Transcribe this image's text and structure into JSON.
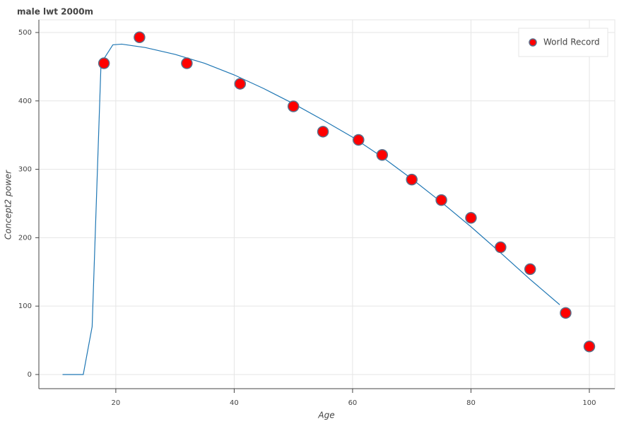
{
  "chart_data": {
    "type": "scatter",
    "title": "male lwt 2000m",
    "xlabel": "Age",
    "ylabel": "Concept2 power",
    "xlim": [
      7,
      104.3
    ],
    "ylim": [
      -20.7,
      518.6
    ],
    "xticks": [
      20,
      40,
      60,
      80,
      100
    ],
    "yticks": [
      0,
      100,
      200,
      300,
      400,
      500
    ],
    "grid": true,
    "legend": "top-right",
    "series": [
      {
        "name": "World Record",
        "kind": "scatter",
        "color": "#ff0000",
        "stroke": "#5a6f8a",
        "x": [
          18,
          24,
          32,
          41,
          50,
          55,
          61,
          65,
          70,
          75,
          80,
          85,
          90,
          96,
          100
        ],
        "values": [
          455,
          493,
          455,
          425,
          392,
          355,
          343,
          321,
          285,
          255,
          229,
          186,
          154,
          90,
          41
        ]
      },
      {
        "kind": "line",
        "color": "#1f77b4",
        "x": [
          11,
          14.5,
          16,
          17.5,
          19.5,
          21,
          25,
          30,
          35,
          40,
          45,
          50,
          55,
          60,
          65,
          70,
          75,
          80,
          85,
          90,
          95
        ],
        "values": [
          0,
          0,
          70,
          455,
          482,
          483,
          478,
          468,
          455,
          438,
          418,
          396,
          372,
          347,
          318,
          286,
          252,
          216,
          178,
          139,
          102
        ]
      }
    ]
  }
}
